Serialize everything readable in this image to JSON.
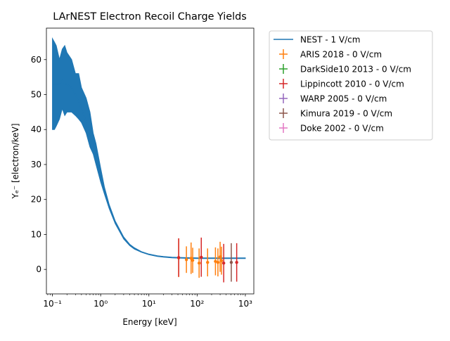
{
  "chart_data": {
    "type": "line",
    "title": "LArNEST Electron Recoil Charge Yields",
    "xlabel": "Energy [keV]",
    "ylabel": "Yₑ⁻  [electron/keV]",
    "xscale": "log",
    "xlim": [
      0.075,
      1500
    ],
    "ylim": [
      -7,
      69
    ],
    "x_ticks": [
      {
        "value": 0.1,
        "label": "10⁻¹"
      },
      {
        "value": 1,
        "label": "10⁰"
      },
      {
        "value": 10,
        "label": "10¹"
      },
      {
        "value": 100,
        "label": "10²"
      },
      {
        "value": 1000,
        "label": "10³"
      }
    ],
    "y_ticks": [
      0,
      10,
      20,
      30,
      40,
      50,
      60
    ],
    "legend_position": "outside-right",
    "grid": false,
    "band": {
      "name": "NEST - 1 V/cm",
      "color": "#1f77b4",
      "x": [
        0.1,
        0.11,
        0.12,
        0.14,
        0.16,
        0.18,
        0.2,
        0.25,
        0.3,
        0.35,
        0.4,
        0.5,
        0.6,
        0.7,
        0.8,
        1.0,
        1.2,
        1.5,
        2,
        3,
        4,
        5,
        7,
        10,
        15,
        20,
        30,
        50,
        70,
        100,
        150,
        200,
        300,
        500,
        700,
        1000
      ],
      "center": [
        53,
        53,
        53,
        53,
        54,
        53,
        53,
        52,
        50,
        48,
        46,
        42,
        39,
        36,
        33,
        27,
        22.5,
        18,
        13.5,
        9,
        7,
        6,
        5,
        4.3,
        3.8,
        3.6,
        3.4,
        3.3,
        3.25,
        3.2,
        3.2,
        3.2,
        3.2,
        3.2,
        3.2,
        3.2
      ],
      "upper": [
        66,
        65,
        64,
        60,
        63,
        64,
        62,
        60,
        56,
        56,
        52,
        49,
        45,
        39,
        36,
        29,
        23.5,
        18.6,
        13.9,
        9.3,
        7.2,
        6.2,
        5.1,
        4.4,
        3.9,
        3.7,
        3.5,
        3.4,
        3.35,
        3.3,
        3.3,
        3.3,
        3.3,
        3.3,
        3.3,
        3.3
      ],
      "lower": [
        40,
        40,
        41,
        43,
        46,
        44,
        45,
        45,
        44,
        43,
        42,
        39,
        35,
        33,
        30,
        25,
        21.5,
        17.4,
        13.1,
        8.7,
        6.8,
        5.8,
        4.9,
        4.2,
        3.7,
        3.5,
        3.3,
        3.2,
        3.15,
        3.1,
        3.1,
        3.1,
        3.1,
        3.1,
        3.1,
        3.1
      ]
    },
    "series": [
      {
        "name": "ARIS 2018 - 0 V/cm",
        "color": "#ff7f0e",
        "points": [
          {
            "x": 41.5,
            "y": 3.3,
            "err": 5.5
          },
          {
            "x": 60,
            "y": 2.8,
            "err": 3.8
          },
          {
            "x": 75,
            "y": 3.2,
            "err": 4.5
          },
          {
            "x": 81,
            "y": 2.6,
            "err": 3.6
          },
          {
            "x": 110,
            "y": 1.8,
            "err": 4.2
          },
          {
            "x": 165,
            "y": 2.0,
            "err": 4.0
          },
          {
            "x": 240,
            "y": 2.3,
            "err": 4.0
          },
          {
            "x": 270,
            "y": 2.0,
            "err": 4.0
          },
          {
            "x": 300,
            "y": 3.6,
            "err": 4.3
          },
          {
            "x": 320,
            "y": 2.5,
            "err": 4.0
          }
        ]
      },
      {
        "name": "DarkSide10 2013 - 0 V/cm",
        "color": "#2ca02c",
        "points": []
      },
      {
        "name": "Lippincott 2010 - 0 V/cm",
        "color": "#d62728",
        "points": [
          {
            "x": 41.5,
            "y": 3.4,
            "err": 5.5
          },
          {
            "x": 122,
            "y": 3.5,
            "err": 5.6
          },
          {
            "x": 356,
            "y": 1.8,
            "err": 5.5
          },
          {
            "x": 662,
            "y": 2.0,
            "err": 5.5
          }
        ]
      },
      {
        "name": "WARP 2005 - 0 V/cm",
        "color": "#9467bd",
        "points": []
      },
      {
        "name": "Kimura 2019 - 0 V/cm",
        "color": "#8c564b",
        "points": [
          {
            "x": 511,
            "y": 2.0,
            "err": 5.5
          }
        ]
      },
      {
        "name": "Doke 2002 - 0 V/cm",
        "color": "#e377c2",
        "points": []
      }
    ]
  }
}
